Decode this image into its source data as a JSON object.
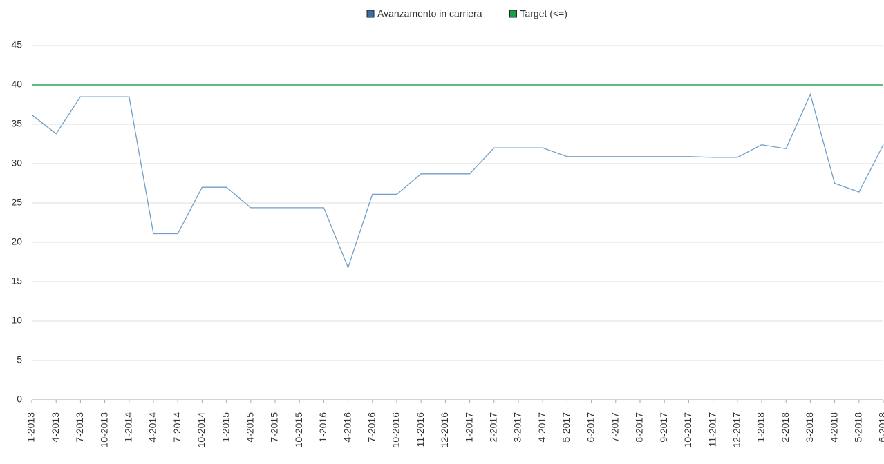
{
  "chart_data": {
    "type": "line",
    "categories": [
      "1-2013",
      "4-2013",
      "7-2013",
      "10-2013",
      "1-2014",
      "4-2014",
      "7-2014",
      "10-2014",
      "1-2015",
      "4-2015",
      "7-2015",
      "10-2015",
      "1-2016",
      "4-2016",
      "7-2016",
      "10-2016",
      "11-2016",
      "12-2016",
      "1-2017",
      "2-2017",
      "3-2017",
      "4-2017",
      "5-2017",
      "6-2017",
      "7-2017",
      "8-2017",
      "9-2017",
      "10-2017",
      "11-2017",
      "12-2017",
      "1-2018",
      "2-2018",
      "3-2018",
      "4-2018",
      "5-2018",
      "6-2018"
    ],
    "series": [
      {
        "name": "Avanzamento in carriera",
        "color": "#6f9fc9",
        "legend_color": "#3a6ea5",
        "values": [
          36.2,
          33.8,
          38.5,
          38.5,
          38.5,
          21.1,
          21.1,
          27.0,
          27.0,
          24.4,
          24.4,
          24.4,
          24.4,
          16.8,
          26.1,
          26.1,
          28.7,
          28.7,
          28.7,
          32.0,
          32.0,
          32.0,
          30.9,
          30.9,
          30.9,
          30.9,
          30.9,
          30.9,
          30.8,
          30.8,
          32.4,
          31.9,
          38.8,
          27.5,
          26.4,
          32.4
        ]
      },
      {
        "name": "Target (<=)",
        "color": "#2ea35a",
        "legend_color": "#1a9c4a",
        "values": [
          40,
          40,
          40,
          40,
          40,
          40,
          40,
          40,
          40,
          40,
          40,
          40,
          40,
          40,
          40,
          40,
          40,
          40,
          40,
          40,
          40,
          40,
          40,
          40,
          40,
          40,
          40,
          40,
          40,
          40,
          40,
          40,
          40,
          40,
          40,
          40
        ]
      }
    ],
    "ylim": [
      0,
      45
    ],
    "yticks": [
      0,
      5,
      10,
      15,
      20,
      25,
      30,
      35,
      40,
      45
    ],
    "grid": true,
    "legend": "top"
  }
}
